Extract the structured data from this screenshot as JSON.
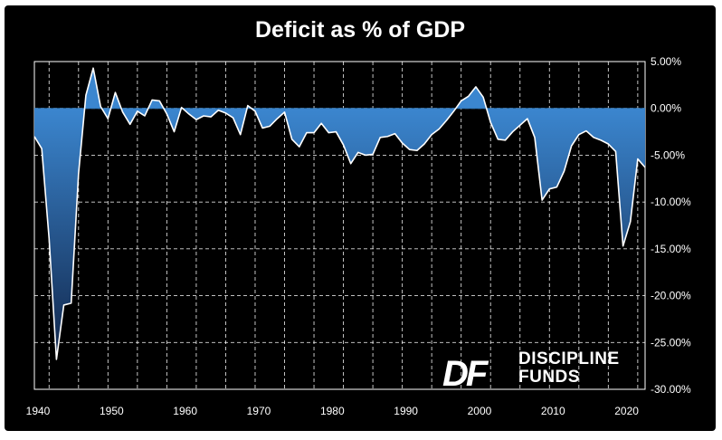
{
  "chart_data": {
    "type": "area",
    "title": "Deficit as % of GDP",
    "xlabel": "",
    "ylabel": "",
    "xlim": [
      1940,
      2023
    ],
    "ylim": [
      -30,
      5
    ],
    "x_ticks": [
      1940,
      1950,
      1960,
      1970,
      1980,
      1990,
      2000,
      2010,
      2020
    ],
    "y_ticks": [
      5,
      0,
      -5,
      -10,
      -15,
      -20,
      -25,
      -30
    ],
    "y_tick_labels": [
      "5.00%",
      "0.00%",
      "-5.00%",
      "-10.00%",
      "-15.00%",
      "-20.00%",
      "-25.00%",
      "-30.00%"
    ],
    "y_axis_position": "right",
    "grid": true,
    "grid_style": "dashed",
    "line_color": "#ffffff",
    "fill_color": "#2e75b6",
    "background": "#000000",
    "series": [
      {
        "x": [
          1940,
          1941,
          1942,
          1943,
          1944,
          1945,
          1946,
          1947,
          1948,
          1949,
          1950,
          1951,
          1952,
          1953,
          1954,
          1955,
          1956,
          1957,
          1958,
          1959,
          1960,
          1961,
          1962,
          1963,
          1964,
          1965,
          1966,
          1967,
          1968,
          1969,
          1970,
          1971,
          1972,
          1973,
          1974,
          1975,
          1976,
          1977,
          1978,
          1979,
          1980,
          1981,
          1982,
          1983,
          1984,
          1985,
          1986,
          1987,
          1988,
          1989,
          1990,
          1991,
          1992,
          1993,
          1994,
          1995,
          1996,
          1997,
          1998,
          1999,
          2000,
          2001,
          2002,
          2003,
          2004,
          2005,
          2006,
          2007,
          2008,
          2009,
          2010,
          2011,
          2012,
          2013,
          2014,
          2015,
          2016,
          2017,
          2018,
          2019,
          2020,
          2021,
          2022,
          2023
        ],
        "values": [
          -3.0,
          -4.3,
          -13.9,
          -26.8,
          -21.0,
          -20.8,
          -7.0,
          1.4,
          4.3,
          0.2,
          -1.1,
          1.7,
          -0.4,
          -1.7,
          -0.3,
          -0.8,
          0.9,
          0.8,
          -0.6,
          -2.5,
          0.1,
          -0.6,
          -1.2,
          -0.8,
          -0.9,
          -0.2,
          -0.5,
          -1.0,
          -2.8,
          0.3,
          -0.3,
          -2.1,
          -1.9,
          -1.1,
          -0.4,
          -3.3,
          -4.1,
          -2.6,
          -2.6,
          -1.6,
          -2.6,
          -2.5,
          -3.9,
          -5.9,
          -4.7,
          -5.0,
          -4.9,
          -3.1,
          -3.0,
          -2.7,
          -3.7,
          -4.4,
          -4.5,
          -3.8,
          -2.8,
          -2.2,
          -1.3,
          -0.3,
          0.8,
          1.3,
          2.3,
          1.2,
          -1.5,
          -3.3,
          -3.4,
          -2.5,
          -1.8,
          -1.1,
          -3.1,
          -9.8,
          -8.6,
          -8.4,
          -6.7,
          -4.0,
          -2.8,
          -2.4,
          -3.1,
          -3.4,
          -3.8,
          -4.6,
          -14.7,
          -12.1,
          -5.4,
          -6.3
        ]
      }
    ]
  },
  "logo": {
    "mark": "DF",
    "line1": "DISCIPLINE",
    "line2": "FUNDS"
  }
}
